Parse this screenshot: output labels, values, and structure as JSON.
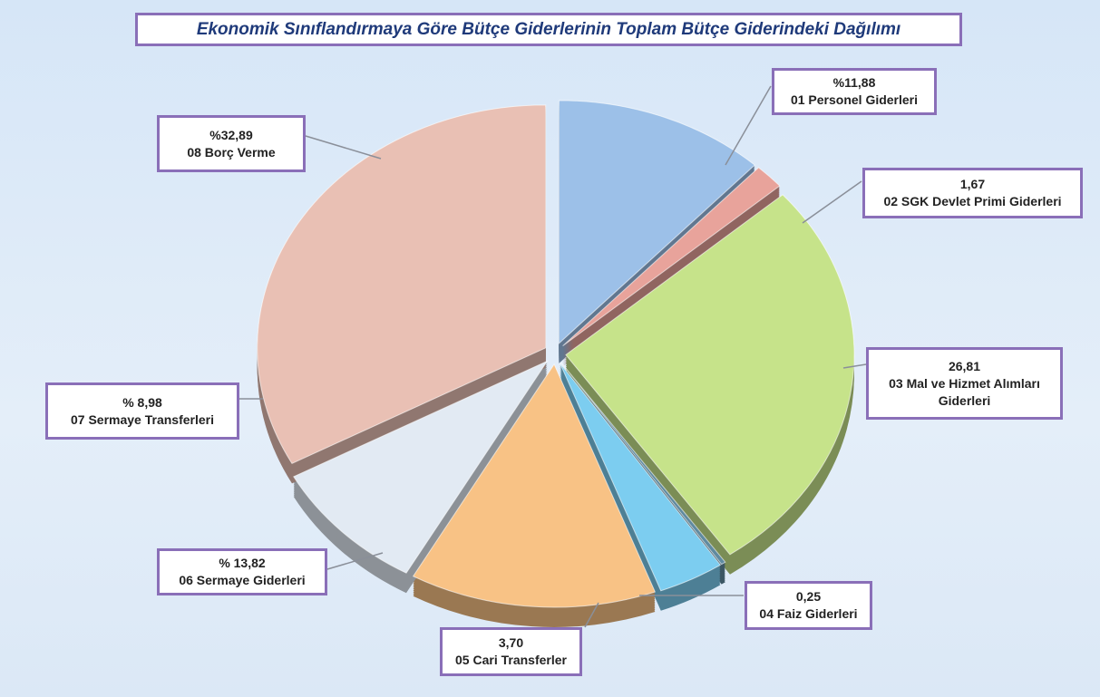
{
  "chart_data": {
    "type": "pie",
    "title": "Ekonomik Sınıflandırmaya Göre Bütçe Giderlerinin Toplam Bütçe Giderindeki Dağılımı",
    "categories": [
      "01 Personel Giderleri",
      "02 SGK Devlet Primi Giderleri",
      "03 Mal ve Hizmet Alımları Giderleri",
      "04 Faiz Giderleri",
      "05 Cari Transferler",
      "06 Sermaye Giderleri",
      "07 Sermaye Transferleri",
      "08 Borç Verme"
    ],
    "values": [
      11.88,
      1.67,
      26.81,
      0.25,
      3.7,
      13.82,
      8.98,
      32.89
    ],
    "value_labels": [
      "%11,88",
      "1,67",
      "26,81",
      "0,25",
      "3,70",
      "% 13,82",
      "% 8,98",
      "%32,89"
    ],
    "colors": [
      "#9cc0e8",
      "#e8a39b",
      "#c6e38a",
      "#5f8aa0",
      "#7ccdf0",
      "#f8c285",
      "#e2eaf3",
      "#e9c0b4"
    ]
  }
}
